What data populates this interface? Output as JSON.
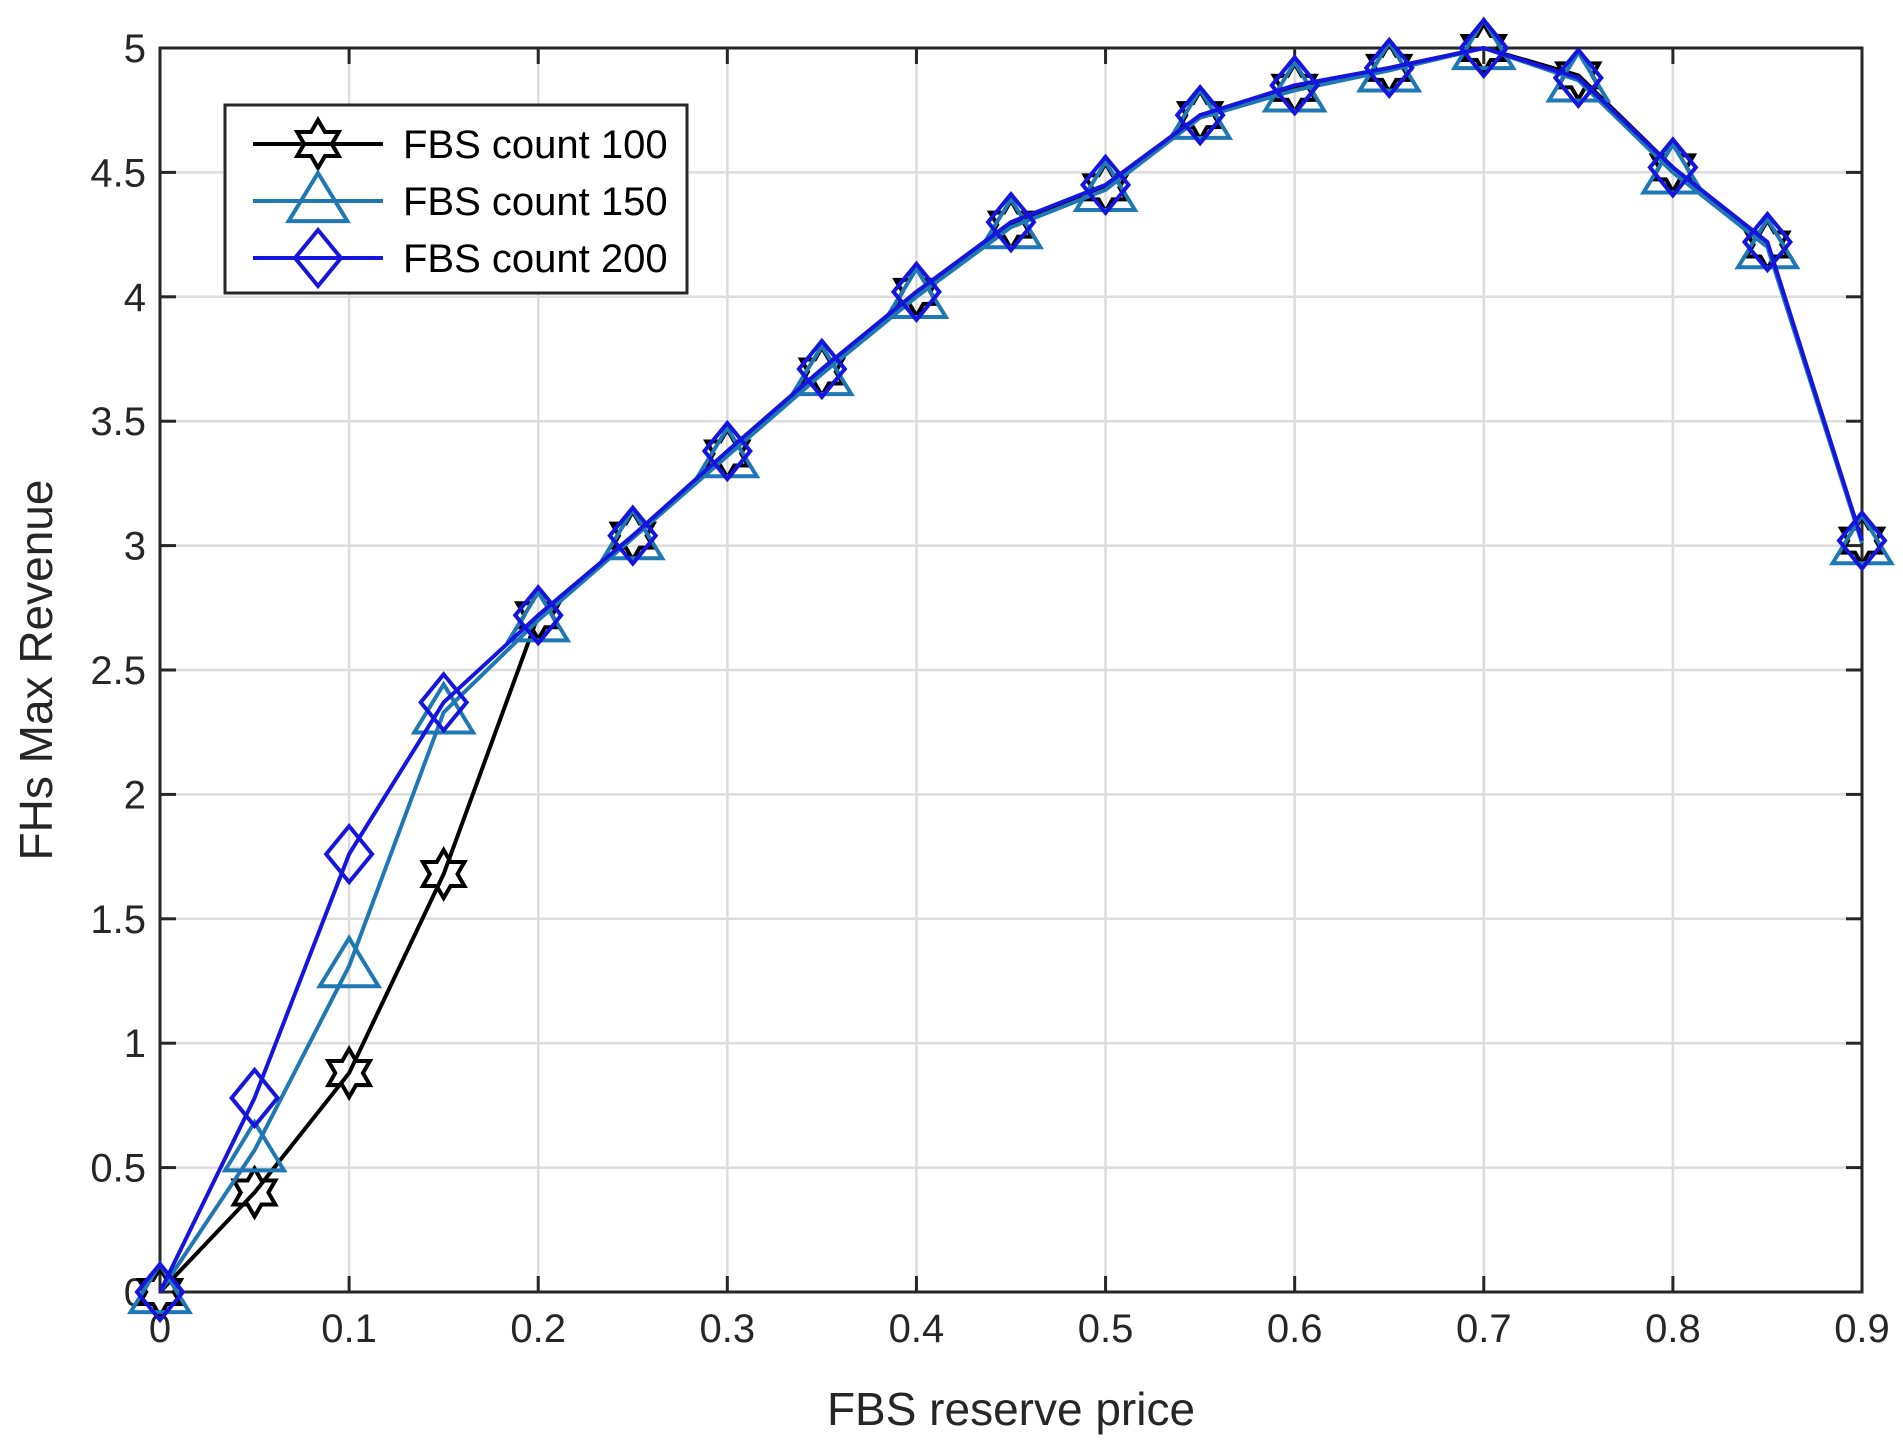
{
  "chart_data": {
    "type": "line",
    "xlabel": "FBS reserve price",
    "ylabel": "FHs Max Revenue",
    "xlim": [
      0,
      0.9
    ],
    "ylim": [
      0,
      5
    ],
    "xticks": [
      "0",
      "0.1",
      "0.2",
      "0.3",
      "0.4",
      "0.5",
      "0.6",
      "0.7",
      "0.8",
      "0.9"
    ],
    "yticks": [
      "0",
      "0.5",
      "1",
      "1.5",
      "2",
      "2.5",
      "3",
      "3.5",
      "4",
      "4.5",
      "5"
    ],
    "grid": true,
    "legend_position": "top-left",
    "x": [
      0,
      0.05,
      0.1,
      0.15,
      0.2,
      0.25,
      0.3,
      0.35,
      0.4,
      0.45,
      0.5,
      0.55,
      0.6,
      0.65,
      0.7,
      0.75,
      0.8,
      0.85,
      0.9
    ],
    "series": [
      {
        "name": "FBS count 100",
        "color": "#000000",
        "marker": "hexagram",
        "values": [
          0,
          0.4,
          0.88,
          1.68,
          2.72,
          3.04,
          3.37,
          3.7,
          4.02,
          4.29,
          4.44,
          4.73,
          4.84,
          4.92,
          5.0,
          4.89,
          4.52,
          4.21,
          3.02
        ]
      },
      {
        "name": "FBS count 150",
        "color": "#1f77b4",
        "marker": "triangle",
        "values": [
          0,
          0.57,
          1.31,
          2.33,
          2.7,
          3.03,
          3.36,
          3.69,
          4.0,
          4.28,
          4.43,
          4.72,
          4.83,
          4.91,
          5.0,
          4.87,
          4.5,
          4.2,
          3.01
        ]
      },
      {
        "name": "FBS count 200",
        "color": "#1515dd",
        "marker": "diamond",
        "values": [
          0,
          0.78,
          1.76,
          2.37,
          2.72,
          3.04,
          3.38,
          3.71,
          4.02,
          4.3,
          4.45,
          4.73,
          4.85,
          4.92,
          5.0,
          4.88,
          4.52,
          4.22,
          3.02
        ]
      }
    ]
  }
}
